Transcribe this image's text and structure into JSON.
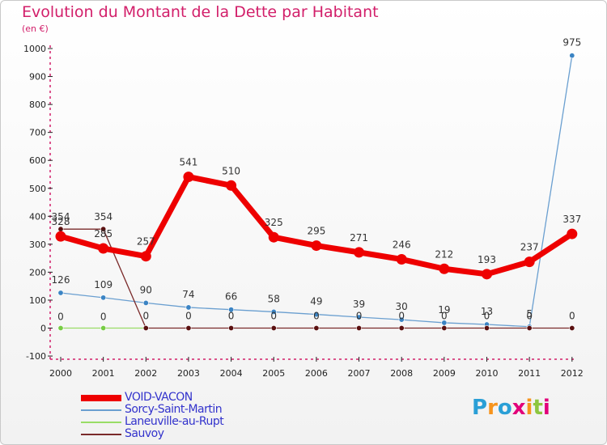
{
  "title": "Evolution du Montant de la Dette par Habitant",
  "subtitle": "(en €)",
  "logo": {
    "text": "Proxiti",
    "letter_colors": [
      "#2a9fd6",
      "#f7941d",
      "#2a9fd6",
      "#e2007a",
      "#f7941d",
      "#8dc63f",
      "#e2007a"
    ]
  },
  "chart_data": {
    "type": "line",
    "x": [
      "2000",
      "2001",
      "2002",
      "2003",
      "2004",
      "2005",
      "2006",
      "2007",
      "2008",
      "2009",
      "2010",
      "2011",
      "2012"
    ],
    "y_ticks": [
      -100,
      0,
      100,
      200,
      300,
      400,
      500,
      600,
      700,
      800,
      900,
      1000
    ],
    "ylim": [
      -100,
      1000
    ],
    "grid": false,
    "legend_position": "bottom-left",
    "series": [
      {
        "name": "VOID-VACON",
        "color": "#ee0000",
        "emphasis": true,
        "values": [
          328,
          285,
          257,
          541,
          510,
          325,
          295,
          271,
          246,
          212,
          193,
          237,
          337
        ],
        "labels": [
          "328",
          "285",
          "257",
          "541",
          "510",
          "325",
          "295",
          "271",
          "246",
          "212",
          "193",
          "237",
          "337"
        ]
      },
      {
        "name": "Sorcy-Saint-Martin",
        "color": "#6a9fd0",
        "marker_color": "#3b84c4",
        "values": [
          126,
          109,
          90,
          74,
          66,
          58,
          49,
          39,
          30,
          19,
          13,
          5,
          975
        ],
        "labels": [
          "126",
          "109",
          "90",
          "74",
          "66",
          "58",
          "49",
          "39",
          "30",
          "19",
          "13",
          "5",
          "975"
        ]
      },
      {
        "name": "Laneuville-au-Rupt",
        "color": "#99dd66",
        "marker_color": "#77cc44",
        "values": [
          0,
          0,
          0,
          null,
          null,
          null,
          null,
          null,
          null,
          null,
          null,
          null,
          null
        ],
        "labels": [
          "0",
          "0",
          "",
          "",
          "",
          "",
          "",
          "",
          "",
          "",
          "",
          "",
          ""
        ]
      },
      {
        "name": "Sauvoy",
        "color": "#7a2a2a",
        "marker_color": "#5a1010",
        "values": [
          354,
          354,
          0,
          0,
          0,
          0,
          0,
          0,
          0,
          0,
          0,
          0,
          0
        ],
        "labels": [
          "354",
          "354",
          "0",
          "0",
          "0",
          "0",
          "0",
          "0",
          "0",
          "0",
          "0",
          "0",
          "0"
        ]
      }
    ]
  }
}
